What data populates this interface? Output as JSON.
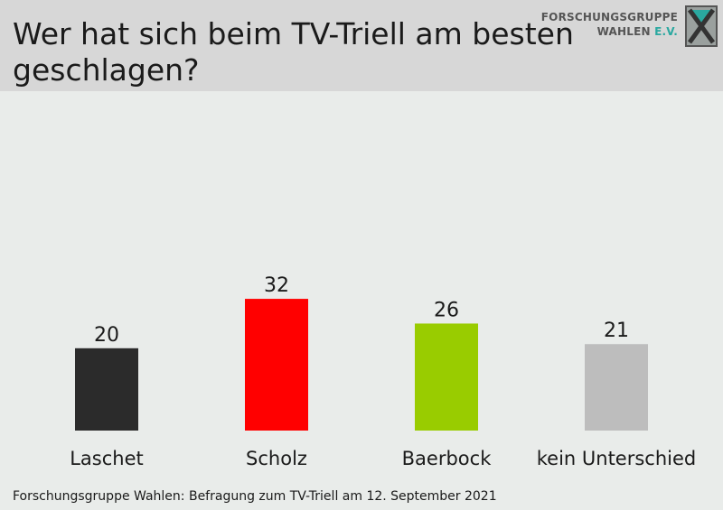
{
  "header": {
    "title": "Wer hat sich beim TV-Triell am besten geschlagen?",
    "logo_line1": "FORSCHUNGSGRUPPE",
    "logo_line2": "WAHLEN",
    "logo_ev": "E.V."
  },
  "chart_data": {
    "type": "bar",
    "title": "Wer hat sich beim TV-Triell am besten geschlagen?",
    "categories": [
      "Laschet",
      "Scholz",
      "Baerbock",
      "kein Unterschied"
    ],
    "values": [
      20,
      32,
      26,
      21
    ],
    "colors": [
      "#2b2b2b",
      "#ff0000",
      "#99cc00",
      "#bdbdbd"
    ],
    "grid": false,
    "legend": "none"
  },
  "footer": {
    "source": "Forschungsgruppe Wahlen: Befragung zum TV-Triell am 12. September 2021"
  }
}
